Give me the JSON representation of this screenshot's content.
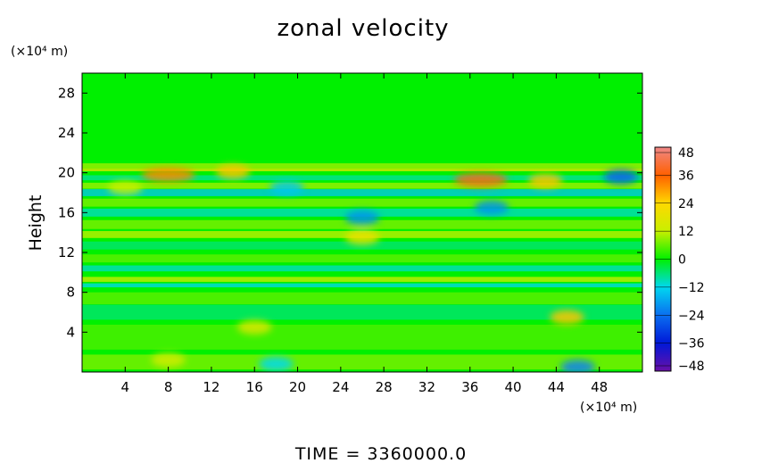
{
  "chart_data": {
    "type": "heatmap",
    "title": "zonal velocity",
    "ylabel": "Height",
    "xlabel": "",
    "x_unit": "(×10⁴ m)",
    "y_unit": "(×10⁴ m)",
    "xlim": [
      0,
      52
    ],
    "ylim": [
      0,
      30
    ],
    "x_ticks": [
      "4",
      "8",
      "12",
      "16",
      "20",
      "24",
      "28",
      "32",
      "36",
      "40",
      "44",
      "48"
    ],
    "x_tick_values": [
      4,
      8,
      12,
      16,
      20,
      24,
      28,
      32,
      36,
      40,
      44,
      48
    ],
    "y_ticks": [
      "4",
      "8",
      "12",
      "16",
      "20",
      "24",
      "28"
    ],
    "y_tick_values": [
      4,
      8,
      12,
      16,
      20,
      24,
      28
    ],
    "colorbar": {
      "min": -48,
      "max": 48,
      "labels": [
        "48",
        "36",
        "24",
        "12",
        "0",
        "−12",
        "−24",
        "−36",
        "−48"
      ],
      "label_values": [
        48,
        36,
        24,
        12,
        0,
        -12,
        -24,
        -36,
        -48
      ]
    },
    "features": [
      {
        "x": 8,
        "y": 19.8,
        "value": 32
      },
      {
        "x": 14,
        "y": 20.1,
        "value": 26
      },
      {
        "x": 37,
        "y": 19.3,
        "value": 38
      },
      {
        "x": 43,
        "y": 19.2,
        "value": 26
      },
      {
        "x": 50,
        "y": 19.6,
        "value": -26
      },
      {
        "x": 19,
        "y": 18.5,
        "value": -14
      },
      {
        "x": 26,
        "y": 15.5,
        "value": -20
      },
      {
        "x": 38,
        "y": 16.5,
        "value": -20
      },
      {
        "x": 26,
        "y": 13.5,
        "value": 20
      },
      {
        "x": 45,
        "y": 5.5,
        "value": 26
      },
      {
        "x": 16,
        "y": 4.5,
        "value": 16
      },
      {
        "x": 8,
        "y": 1.2,
        "value": 14
      },
      {
        "x": 46,
        "y": 0.5,
        "value": -22
      },
      {
        "x": 18,
        "y": 0.8,
        "value": -12
      },
      {
        "x": 4,
        "y": 18.5,
        "value": 12
      }
    ],
    "footer": "TIME  =  3360000.0"
  }
}
